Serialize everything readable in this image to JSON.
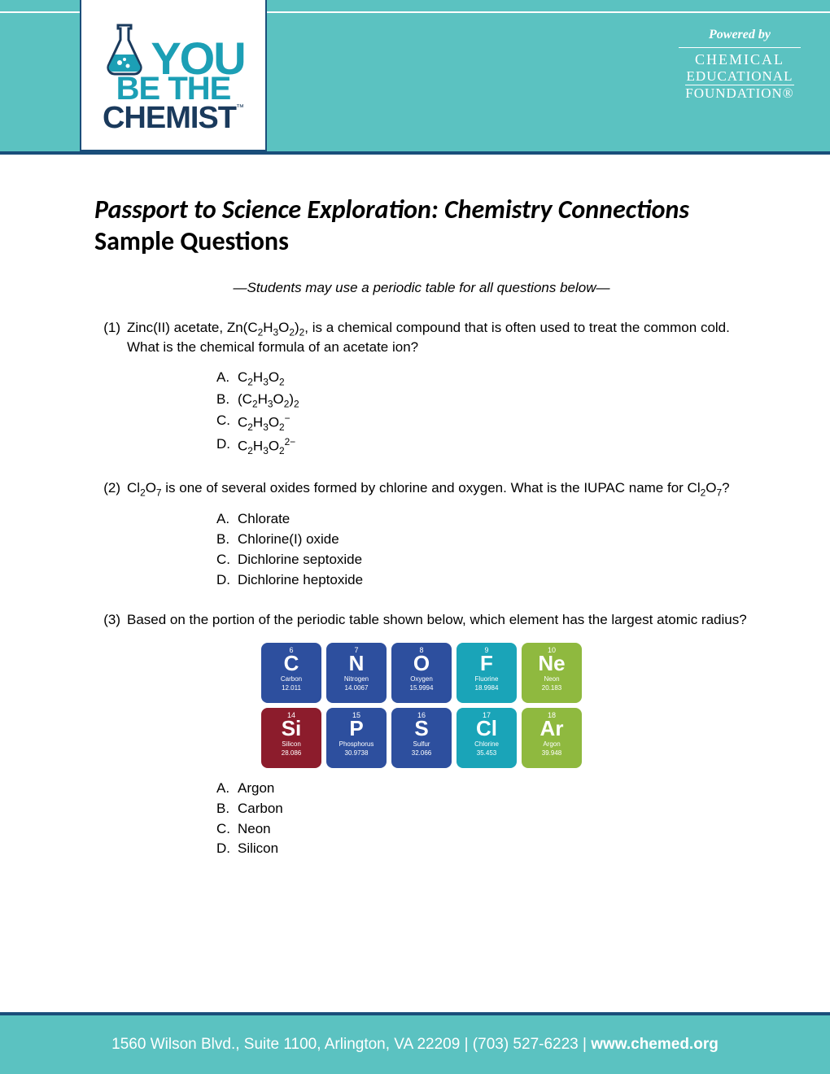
{
  "header": {
    "logo": {
      "you": "YOU",
      "bethe": "BE THE",
      "chemist": "CHEMIST",
      "tm": "™"
    },
    "powered_by": "Powered by",
    "cef": {
      "line1": "CHEMICAL",
      "line2": "EDUCATIONAL",
      "line3": "FOUNDATION®"
    },
    "band_color": "#5bc2c1",
    "rule_color": "#1a4e7a",
    "logo_cyan": "#1c9fb5",
    "logo_navy": "#1a3a5c"
  },
  "title": {
    "line1": "Passport to Science Exploration: Chemistry Connections",
    "line2": "Sample Questions"
  },
  "note": "—Students may use a periodic table for all questions below—",
  "questions": [
    {
      "num": "(1)",
      "text_html": "Zinc(II) acetate, Zn(C<sub>2</sub>H<sub>3</sub>O<sub>2</sub>)<sub>2</sub>, is a chemical compound that is often used to treat the common cold. What is the chemical formula of an acetate ion?",
      "choices": [
        {
          "letter": "A.",
          "html": "C<sub>2</sub>H<sub>3</sub>O<sub>2</sub>"
        },
        {
          "letter": "B.",
          "html": "(C<sub>2</sub>H<sub>3</sub>O<sub>2</sub>)<sub>2</sub>"
        },
        {
          "letter": "C.",
          "html": "C<sub>2</sub>H<sub>3</sub>O<sub>2</sub><sup>−</sup>"
        },
        {
          "letter": "D.",
          "html": "C<sub>2</sub>H<sub>3</sub>O<sub>2</sub><sup>2−</sup>"
        }
      ]
    },
    {
      "num": "(2)",
      "text_html": "Cl<sub>2</sub>O<sub>7</sub> is one of several oxides formed by chlorine and oxygen. What is the IUPAC name for Cl<sub>2</sub>O<sub>7</sub>?",
      "choices": [
        {
          "letter": "A.",
          "html": "Chlorate"
        },
        {
          "letter": "B.",
          "html": "Chlorine(I) oxide"
        },
        {
          "letter": "C.",
          "html": "Dichlorine septoxide"
        },
        {
          "letter": "D.",
          "html": "Dichlorine heptoxide"
        }
      ]
    },
    {
      "num": "(3)",
      "text_html": "Based on the portion of the periodic table shown below, which element has the largest atomic radius?",
      "choices": [
        {
          "letter": "A.",
          "html": "Argon"
        },
        {
          "letter": "B.",
          "html": "Carbon"
        },
        {
          "letter": "C.",
          "html": "Neon"
        },
        {
          "letter": "D.",
          "html": "Silicon"
        }
      ]
    }
  ],
  "periodic_tiles": [
    {
      "num": "6",
      "sym": "C",
      "name": "Carbon",
      "mass": "12.011",
      "color": "#2d4f9e"
    },
    {
      "num": "7",
      "sym": "N",
      "name": "Nitrogen",
      "mass": "14.0067",
      "color": "#2d4f9e"
    },
    {
      "num": "8",
      "sym": "O",
      "name": "Oxygen",
      "mass": "15.9994",
      "color": "#2d4f9e"
    },
    {
      "num": "9",
      "sym": "F",
      "name": "Fluorine",
      "mass": "18.9984",
      "color": "#1aa4b8"
    },
    {
      "num": "10",
      "sym": "Ne",
      "name": "Neon",
      "mass": "20.183",
      "color": "#8fb93f"
    },
    {
      "num": "14",
      "sym": "Si",
      "name": "Silicon",
      "mass": "28.086",
      "color": "#8c1c2c"
    },
    {
      "num": "15",
      "sym": "P",
      "name": "Phosphorus",
      "mass": "30.9738",
      "color": "#2d4f9e"
    },
    {
      "num": "16",
      "sym": "S",
      "name": "Sulfur",
      "mass": "32.066",
      "color": "#2d4f9e"
    },
    {
      "num": "17",
      "sym": "Cl",
      "name": "Chlorine",
      "mass": "35.453",
      "color": "#1aa4b8"
    },
    {
      "num": "18",
      "sym": "Ar",
      "name": "Argon",
      "mass": "39.948",
      "color": "#8fb93f"
    }
  ],
  "footer": {
    "address": "1560 Wilson Blvd., Suite 1100, Arlington, VA 22209 | (703) 527-6223 | ",
    "link": "www.chemed.org"
  }
}
